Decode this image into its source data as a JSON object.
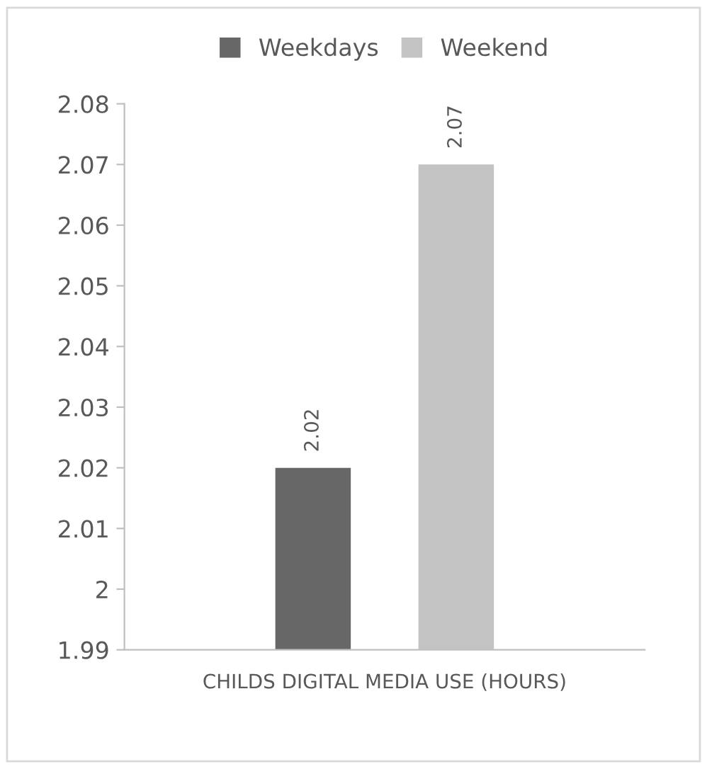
{
  "chart_data": {
    "type": "bar",
    "categories": [
      "CHILDS DIGITAL MEDIA USE (HOURS)"
    ],
    "series": [
      {
        "name": "Weekdays",
        "color": "#676767",
        "values": [
          2.02
        ]
      },
      {
        "name": "Weekend",
        "color": "#c3c3c3",
        "values": [
          2.07
        ]
      }
    ],
    "ylim": [
      1.99,
      2.08
    ],
    "yticks": [
      1.99,
      2,
      2.01,
      2.02,
      2.03,
      2.04,
      2.05,
      2.06,
      2.07,
      2.08
    ],
    "data_labels": true,
    "legend": "top",
    "grid": false
  }
}
